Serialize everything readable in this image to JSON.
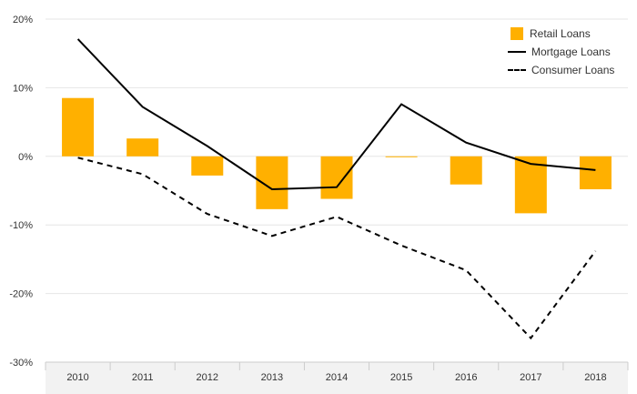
{
  "chart_data": {
    "type": "bar",
    "categories": [
      "2010",
      "2011",
      "2012",
      "2013",
      "2014",
      "2015",
      "2016",
      "2017",
      "2018"
    ],
    "series": [
      {
        "name": "Retail Loans",
        "type": "bar",
        "color": "#ffb000",
        "values": [
          8.5,
          2.6,
          -2.8,
          -7.7,
          -6.2,
          -0.1,
          -4.1,
          -8.3,
          -4.8
        ]
      },
      {
        "name": "Mortgage Loans",
        "type": "line",
        "style": "solid",
        "color": "#000000",
        "values": [
          17.1,
          7.2,
          1.5,
          -4.8,
          -4.5,
          7.6,
          2.0,
          -1.1,
          -2.0
        ]
      },
      {
        "name": "Consumer Loans",
        "type": "line",
        "style": "dashed",
        "color": "#000000",
        "values": [
          -0.2,
          -2.6,
          -8.4,
          -11.6,
          -8.8,
          -13.0,
          -16.6,
          -26.5,
          -13.8
        ]
      }
    ],
    "y_ticks": [
      "20%",
      "10%",
      "0%",
      "-10%",
      "-20%",
      "-30%"
    ],
    "ylim": [
      -30,
      20
    ],
    "grid": "horizontal",
    "legend_position": "top-right"
  }
}
